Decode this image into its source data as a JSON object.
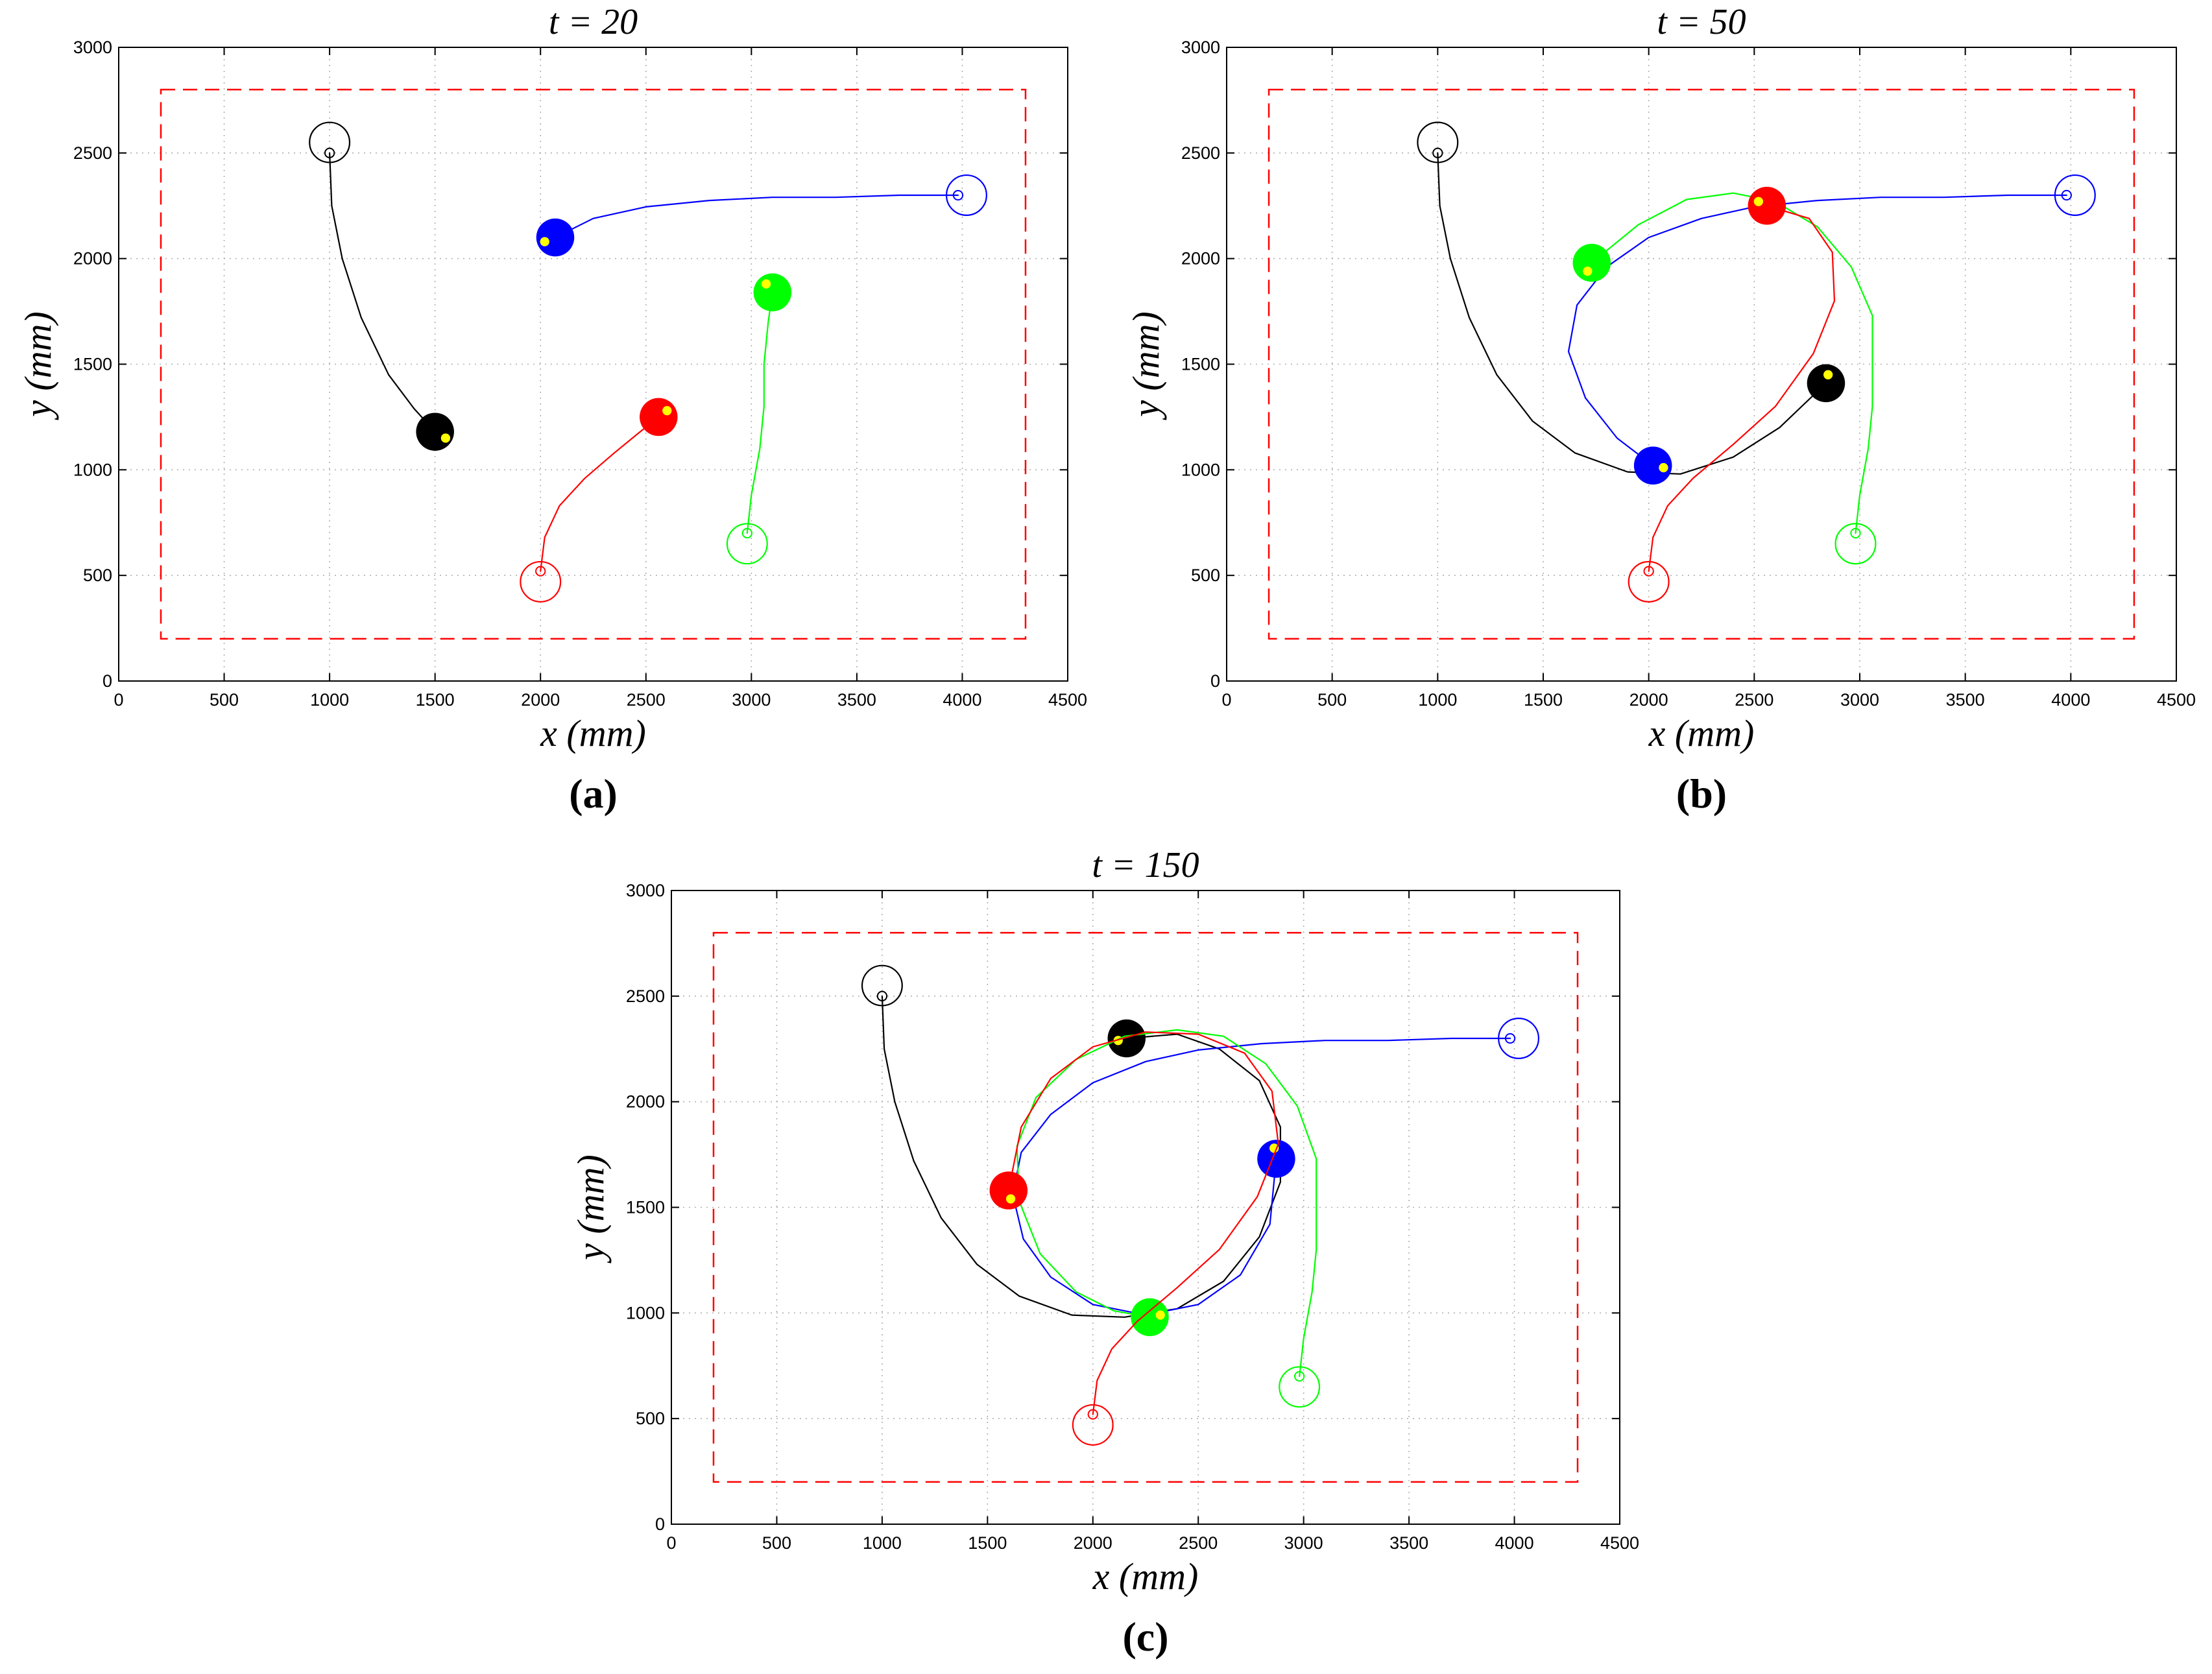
{
  "chart_data": [
    {
      "type": "line",
      "panel": "(a)",
      "title": "t = 20",
      "xlabel": "x (mm)",
      "ylabel": "y (mm)",
      "xlim": [
        0,
        4500
      ],
      "ylim": [
        0,
        3000
      ],
      "xticks": [
        "0",
        "500",
        "1000",
        "1500",
        "2000",
        "2500",
        "3000",
        "3500",
        "4000",
        "4500"
      ],
      "yticks": [
        "0",
        "500",
        "1000",
        "1500",
        "2000",
        "2500",
        "3000"
      ],
      "grid": true,
      "boundary": {
        "x": [
          200,
          4300
        ],
        "y": [
          200,
          2800
        ],
        "color": "#ff0000",
        "style": "dashed"
      },
      "series": [
        {
          "name": "black",
          "color": "#000000",
          "start": [
            1000,
            2550
          ],
          "end": [
            1500,
            1180
          ],
          "heading": [
            1550,
            1150
          ],
          "path": [
            [
              1000,
              2500
            ],
            [
              1010,
              2250
            ],
            [
              1060,
              2000
            ],
            [
              1150,
              1720
            ],
            [
              1280,
              1450
            ],
            [
              1400,
              1290
            ],
            [
              1500,
              1180
            ]
          ]
        },
        {
          "name": "blue",
          "color": "#0000ff",
          "start": [
            4020,
            2300
          ],
          "end": [
            2070,
            2100
          ],
          "heading": [
            2020,
            2080
          ],
          "path": [
            [
              3980,
              2300
            ],
            [
              3700,
              2300
            ],
            [
              3400,
              2290
            ],
            [
              3100,
              2290
            ],
            [
              2800,
              2275
            ],
            [
              2500,
              2245
            ],
            [
              2250,
              2190
            ],
            [
              2070,
              2100
            ]
          ]
        },
        {
          "name": "green",
          "color": "#00ff00",
          "start": [
            2980,
            650
          ],
          "end": [
            3100,
            1840
          ],
          "heading": [
            3070,
            1880
          ],
          "path": [
            [
              2980,
              700
            ],
            [
              3000,
              880
            ],
            [
              3040,
              1100
            ],
            [
              3060,
              1300
            ],
            [
              3060,
              1500
            ],
            [
              3080,
              1700
            ],
            [
              3100,
              1840
            ]
          ]
        },
        {
          "name": "red",
          "color": "#ff0000",
          "start": [
            2000,
            470
          ],
          "end": [
            2560,
            1250
          ],
          "heading": [
            2600,
            1280
          ],
          "path": [
            [
              2000,
              520
            ],
            [
              2020,
              680
            ],
            [
              2090,
              830
            ],
            [
              2210,
              960
            ],
            [
              2350,
              1080
            ],
            [
              2460,
              1170
            ],
            [
              2560,
              1250
            ]
          ]
        }
      ]
    },
    {
      "type": "line",
      "panel": "(b)",
      "title": "t = 50",
      "xlabel": "x (mm)",
      "ylabel": "y (mm)",
      "xlim": [
        0,
        4500
      ],
      "ylim": [
        0,
        3000
      ],
      "xticks": [
        "0",
        "500",
        "1000",
        "1500",
        "2000",
        "2500",
        "3000",
        "3500",
        "4000",
        "4500"
      ],
      "yticks": [
        "0",
        "500",
        "1000",
        "1500",
        "2000",
        "2500",
        "3000"
      ],
      "grid": true,
      "boundary": {
        "x": [
          200,
          4300
        ],
        "y": [
          200,
          2800
        ],
        "color": "#ff0000",
        "style": "dashed"
      },
      "series": [
        {
          "name": "black",
          "color": "#000000",
          "start": [
            1000,
            2550
          ],
          "end": [
            2840,
            1410
          ],
          "heading": [
            2850,
            1450
          ],
          "path": [
            [
              1000,
              2500
            ],
            [
              1010,
              2250
            ],
            [
              1060,
              2000
            ],
            [
              1150,
              1720
            ],
            [
              1280,
              1450
            ],
            [
              1450,
              1230
            ],
            [
              1650,
              1080
            ],
            [
              1900,
              990
            ],
            [
              2150,
              980
            ],
            [
              2400,
              1060
            ],
            [
              2620,
              1200
            ],
            [
              2840,
              1410
            ]
          ]
        },
        {
          "name": "blue",
          "color": "#0000ff",
          "start": [
            4020,
            2300
          ],
          "end": [
            2020,
            1020
          ],
          "heading": [
            2070,
            1010
          ],
          "path": [
            [
              3980,
              2300
            ],
            [
              3700,
              2300
            ],
            [
              3400,
              2290
            ],
            [
              3100,
              2290
            ],
            [
              2800,
              2275
            ],
            [
              2500,
              2245
            ],
            [
              2250,
              2190
            ],
            [
              2000,
              2100
            ],
            [
              1800,
              1960
            ],
            [
              1660,
              1780
            ],
            [
              1620,
              1560
            ],
            [
              1700,
              1340
            ],
            [
              1850,
              1150
            ],
            [
              2020,
              1020
            ]
          ]
        },
        {
          "name": "green",
          "color": "#00ff00",
          "start": [
            2980,
            650
          ],
          "end": [
            1730,
            1980
          ],
          "heading": [
            1710,
            1940
          ],
          "path": [
            [
              2980,
              700
            ],
            [
              3000,
              880
            ],
            [
              3040,
              1100
            ],
            [
              3060,
              1300
            ],
            [
              3060,
              1500
            ],
            [
              3060,
              1730
            ],
            [
              2960,
              1960
            ],
            [
              2800,
              2150
            ],
            [
              2600,
              2270
            ],
            [
              2400,
              2310
            ],
            [
              2180,
              2280
            ],
            [
              1950,
              2160
            ],
            [
              1730,
              1980
            ]
          ]
        },
        {
          "name": "red",
          "color": "#ff0000",
          "start": [
            2000,
            470
          ],
          "end": [
            2560,
            2250
          ],
          "heading": [
            2520,
            2270
          ],
          "path": [
            [
              2000,
              520
            ],
            [
              2020,
              680
            ],
            [
              2090,
              830
            ],
            [
              2210,
              960
            ],
            [
              2400,
              1120
            ],
            [
              2600,
              1300
            ],
            [
              2780,
              1550
            ],
            [
              2880,
              1800
            ],
            [
              2870,
              2030
            ],
            [
              2760,
              2190
            ],
            [
              2560,
              2250
            ]
          ]
        }
      ]
    },
    {
      "type": "line",
      "panel": "(c)",
      "title": "t = 150",
      "xlabel": "x (mm)",
      "ylabel": "y (mm)",
      "xlim": [
        0,
        4500
      ],
      "ylim": [
        0,
        3000
      ],
      "xticks": [
        "0",
        "500",
        "1000",
        "1500",
        "2000",
        "2500",
        "3000",
        "3500",
        "4000",
        "4500"
      ],
      "yticks": [
        "0",
        "500",
        "1000",
        "1500",
        "2000",
        "2500",
        "3000"
      ],
      "grid": true,
      "boundary": {
        "x": [
          200,
          4300
        ],
        "y": [
          200,
          2800
        ],
        "color": "#ff0000",
        "style": "dashed"
      },
      "series": [
        {
          "name": "black",
          "color": "#000000",
          "start": [
            1000,
            2550
          ],
          "end": [
            2160,
            2300
          ],
          "heading": [
            2120,
            2290
          ],
          "path": [
            [
              1000,
              2500
            ],
            [
              1010,
              2250
            ],
            [
              1060,
              2000
            ],
            [
              1150,
              1720
            ],
            [
              1280,
              1450
            ],
            [
              1450,
              1230
            ],
            [
              1650,
              1080
            ],
            [
              1900,
              990
            ],
            [
              2150,
              980
            ],
            [
              2400,
              1020
            ],
            [
              2620,
              1150
            ],
            [
              2790,
              1360
            ],
            [
              2890,
              1620
            ],
            [
              2890,
              1880
            ],
            [
              2790,
              2100
            ],
            [
              2600,
              2250
            ],
            [
              2400,
              2320
            ],
            [
              2160,
              2300
            ]
          ]
        },
        {
          "name": "blue",
          "color": "#0000ff",
          "start": [
            4020,
            2300
          ],
          "end": [
            2870,
            1730
          ],
          "heading": [
            2860,
            1780
          ],
          "path": [
            [
              3980,
              2300
            ],
            [
              3700,
              2300
            ],
            [
              3400,
              2290
            ],
            [
              3100,
              2290
            ],
            [
              2800,
              2275
            ],
            [
              2500,
              2245
            ],
            [
              2250,
              2190
            ],
            [
              2000,
              2090
            ],
            [
              1800,
              1940
            ],
            [
              1660,
              1760
            ],
            [
              1620,
              1560
            ],
            [
              1670,
              1350
            ],
            [
              1800,
              1170
            ],
            [
              2000,
              1040
            ],
            [
              2250,
              990
            ],
            [
              2500,
              1040
            ],
            [
              2700,
              1180
            ],
            [
              2840,
              1420
            ],
            [
              2870,
              1730
            ]
          ]
        },
        {
          "name": "green",
          "color": "#00ff00",
          "start": [
            2980,
            650
          ],
          "end": [
            2270,
            980
          ],
          "heading": [
            2320,
            990
          ],
          "path": [
            [
              2980,
              700
            ],
            [
              3000,
              880
            ],
            [
              3040,
              1100
            ],
            [
              3060,
              1300
            ],
            [
              3060,
              1500
            ],
            [
              3060,
              1730
            ],
            [
              2970,
              1980
            ],
            [
              2820,
              2180
            ],
            [
              2620,
              2310
            ],
            [
              2400,
              2340
            ],
            [
              2150,
              2310
            ],
            [
              1920,
              2200
            ],
            [
              1730,
              2020
            ],
            [
              1640,
              1790
            ],
            [
              1650,
              1530
            ],
            [
              1750,
              1280
            ],
            [
              1920,
              1100
            ],
            [
              2100,
              1010
            ],
            [
              2270,
              980
            ]
          ]
        },
        {
          "name": "red",
          "color": "#ff0000",
          "start": [
            2000,
            470
          ],
          "end": [
            1600,
            1580
          ],
          "heading": [
            1610,
            1540
          ],
          "path": [
            [
              2000,
              520
            ],
            [
              2020,
              680
            ],
            [
              2090,
              830
            ],
            [
              2210,
              960
            ],
            [
              2400,
              1120
            ],
            [
              2600,
              1300
            ],
            [
              2780,
              1550
            ],
            [
              2880,
              1800
            ],
            [
              2850,
              2050
            ],
            [
              2720,
              2230
            ],
            [
              2500,
              2320
            ],
            [
              2250,
              2330
            ],
            [
              2000,
              2260
            ],
            [
              1800,
              2110
            ],
            [
              1660,
              1880
            ],
            [
              1600,
              1580
            ]
          ]
        }
      ]
    }
  ]
}
